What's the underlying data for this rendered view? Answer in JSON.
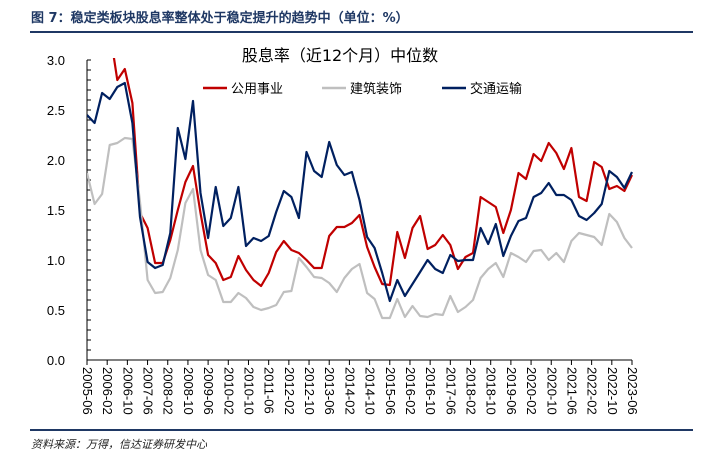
{
  "header": {
    "figure_title": "图 7：稳定类板块股息率整体处于稳定提升的趋势中（单位：%）"
  },
  "footer": {
    "source": "资料来源：万得，信达证券研发中心"
  },
  "chart_data": {
    "type": "line",
    "title": "股息率（近12个月）中位数",
    "xlabel": "",
    "ylabel": "",
    "ylim": [
      0,
      3.0
    ],
    "yticks": [
      "0.0",
      "0.5",
      "1.0",
      "1.5",
      "2.0",
      "2.5",
      "3.0"
    ],
    "x_range": [
      "2005-06",
      "2023-06"
    ],
    "frequency": "quarterly",
    "xtick_labels": [
      "2005-06",
      "2006-02",
      "2006-10",
      "2007-06",
      "2008-02",
      "2008-10",
      "2009-06",
      "2010-02",
      "2010-10",
      "2011-06",
      "2012-02",
      "2012-10",
      "2013-06",
      "2014-02",
      "2014-10",
      "2015-06",
      "2016-02",
      "2016-10",
      "2017-06",
      "2018-02",
      "2018-10",
      "2019-06",
      "2020-02",
      "2020-10",
      "2021-06",
      "2022-02",
      "2022-10",
      "2023-06"
    ],
    "grid": false,
    "legend_placement": "top-center",
    "series": [
      {
        "name": "公用事业",
        "color": "#c00000",
        "values": [
          null,
          null,
          null,
          3.3,
          2.8,
          2.91,
          2.57,
          1.47,
          1.32,
          0.97,
          0.97,
          1.2,
          1.5,
          1.78,
          1.94,
          1.47,
          1.05,
          0.97,
          0.8,
          0.83,
          1.04,
          0.9,
          0.8,
          0.74,
          0.87,
          1.08,
          1.19,
          1.1,
          1.07,
          1.0,
          0.92,
          0.92,
          1.24,
          1.33,
          1.33,
          1.37,
          1.45,
          1.13,
          0.93,
          0.76,
          0.75,
          1.28,
          1.02,
          1.32,
          1.44,
          1.11,
          1.15,
          1.25,
          1.15,
          0.91,
          1.03,
          1.07,
          1.63,
          1.58,
          1.53,
          1.27,
          1.5,
          1.87,
          1.81,
          2.06,
          1.99,
          2.17,
          2.07,
          1.91,
          2.12,
          1.63,
          1.59,
          1.98,
          1.93,
          1.71,
          1.74,
          1.69,
          1.85
        ]
      },
      {
        "name": "建筑装饰",
        "color": "#bfbfbf",
        "values": [
          1.87,
          1.56,
          1.66,
          2.15,
          2.17,
          2.22,
          2.21,
          1.58,
          0.8,
          0.67,
          0.68,
          0.82,
          1.1,
          1.57,
          1.71,
          1.1,
          0.85,
          0.8,
          0.58,
          0.58,
          0.67,
          0.62,
          0.53,
          0.5,
          0.52,
          0.55,
          0.68,
          0.69,
          1.02,
          0.93,
          0.83,
          0.82,
          0.77,
          0.68,
          0.82,
          0.91,
          0.96,
          0.67,
          0.61,
          0.42,
          0.42,
          0.61,
          0.43,
          0.54,
          0.44,
          0.43,
          0.46,
          0.45,
          0.64,
          0.48,
          0.53,
          0.6,
          0.82,
          0.91,
          0.97,
          0.83,
          1.07,
          1.03,
          0.98,
          1.09,
          1.1,
          1.0,
          1.07,
          0.98,
          1.19,
          1.27,
          1.25,
          1.23,
          1.15,
          1.46,
          1.38,
          1.22,
          1.12
        ]
      },
      {
        "name": "交通运输",
        "color": "#002060",
        "values": [
          2.45,
          2.37,
          2.67,
          2.61,
          2.73,
          2.77,
          2.37,
          1.43,
          0.98,
          0.92,
          0.95,
          1.27,
          2.32,
          2.01,
          2.59,
          1.67,
          1.22,
          1.73,
          1.34,
          1.42,
          1.73,
          1.14,
          1.22,
          1.19,
          1.24,
          1.48,
          1.69,
          1.63,
          1.42,
          2.08,
          1.89,
          1.83,
          2.18,
          1.95,
          1.85,
          1.88,
          1.6,
          1.23,
          1.12,
          0.87,
          0.59,
          0.8,
          0.64,
          0.76,
          0.88,
          1.0,
          0.91,
          0.87,
          1.05,
          0.99,
          1.0,
          1.0,
          1.32,
          1.16,
          1.36,
          1.04,
          1.24,
          1.39,
          1.42,
          1.63,
          1.67,
          1.77,
          1.65,
          1.65,
          1.6,
          1.44,
          1.4,
          1.47,
          1.56,
          1.89,
          1.83,
          1.72,
          1.88
        ]
      }
    ]
  }
}
